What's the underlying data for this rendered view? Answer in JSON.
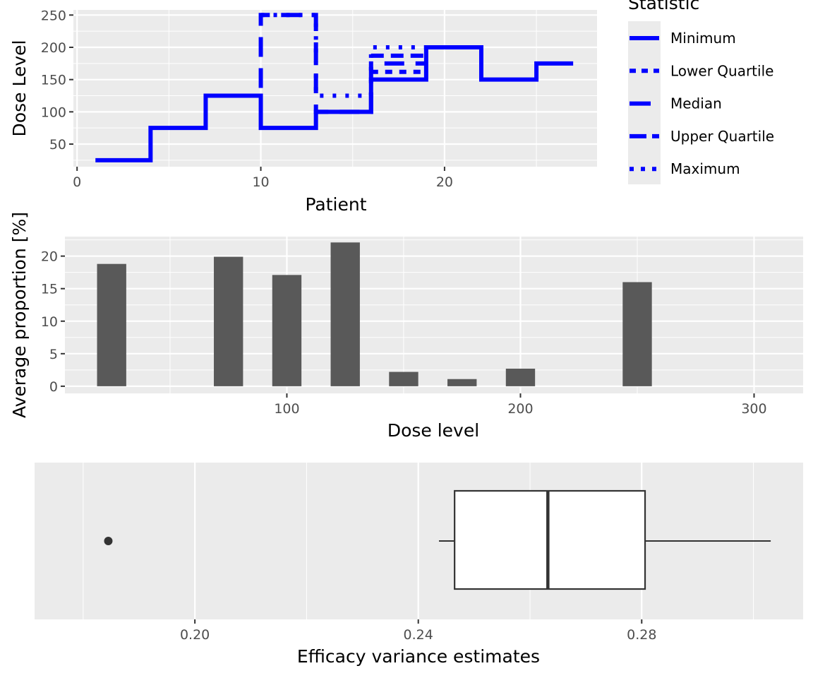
{
  "chart_data": [
    {
      "type": "line",
      "xlabel": "Patient",
      "ylabel": "Dose Level",
      "xlim": [
        -0.2,
        28.3
      ],
      "ylim": [
        15,
        258
      ],
      "x_ticks": [
        0,
        10,
        20
      ],
      "y_ticks": [
        50,
        100,
        150,
        200,
        250
      ],
      "line_color": "#0000FF",
      "legend": {
        "title": "Statistic",
        "position": "right",
        "entries": [
          "Minimum",
          "Lower Quartile",
          "Median",
          "Upper Quartile",
          "Maximum"
        ]
      },
      "series": [
        {
          "name": "Minimum",
          "style": "solid",
          "x": [
            1,
            4,
            4,
            7,
            7,
            10,
            10,
            13,
            13,
            16,
            16,
            19,
            19,
            22,
            22,
            25,
            25,
            27
          ],
          "y": [
            25,
            25,
            75,
            75,
            125,
            125,
            75,
            75,
            100,
            100,
            150,
            150,
            200,
            200,
            150,
            150,
            175,
            175
          ]
        },
        {
          "name": "Lower Quartile",
          "style": "dashed",
          "x": [
            16,
            19
          ],
          "y": [
            162,
            162
          ]
        },
        {
          "name": "Median",
          "style": "longdash",
          "x": [
            10,
            10,
            13,
            13,
            16,
            16,
            19
          ],
          "y": [
            137,
            250,
            250,
            100,
            100,
            175,
            175
          ]
        },
        {
          "name": "Upper Quartile",
          "style": "longdash2",
          "x": [
            16,
            19
          ],
          "y": [
            187,
            187
          ]
        },
        {
          "name": "Maximum",
          "style": "dotted",
          "x": [
            10,
            10,
            13,
            13,
            16,
            16,
            19
          ],
          "y": [
            250,
            250,
            250,
            125,
            125,
            200,
            200
          ]
        }
      ]
    },
    {
      "type": "bar",
      "xlabel": "Dose level",
      "ylabel": "Average proportion [%]",
      "xlim": [
        5,
        321
      ],
      "ylim": [
        -1.1,
        23
      ],
      "x_ticks": [
        100,
        200,
        300
      ],
      "y_ticks": [
        0,
        5,
        10,
        15,
        20
      ],
      "bar_width": 12.5,
      "bar_color": "#595959",
      "categories": [
        25,
        75,
        100,
        125,
        150,
        175,
        200,
        250
      ],
      "values": [
        18.8,
        19.9,
        17.1,
        22.1,
        2.2,
        1.1,
        2.7,
        16.0
      ]
    },
    {
      "type": "box",
      "xlabel": "Efficacy variance estimates",
      "xlim": [
        0.1713,
        0.3089
      ],
      "x_ticks": [
        0.2,
        0.24,
        0.28
      ],
      "x_tick_labels": [
        "0.20",
        "0.24",
        "0.28"
      ],
      "whisker_low": 0.2437,
      "q1": 0.2465,
      "median": 0.2632,
      "q3": 0.2806,
      "whisker_high": 0.3031,
      "outliers": [
        0.1845
      ]
    }
  ]
}
